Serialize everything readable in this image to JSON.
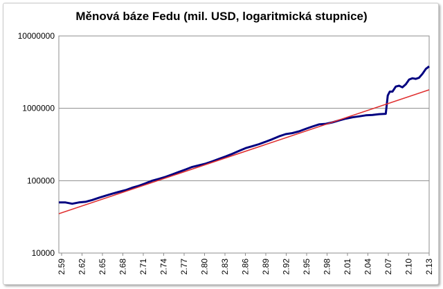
{
  "chart_data": {
    "type": "line",
    "title": "Měnová báze Fedu (mil. USD, logaritmická stupnice)",
    "y_scale": "log",
    "ylim": [
      10000,
      10000000
    ],
    "y_ticks": [
      "10000",
      "100000",
      "1000000",
      "10000000"
    ],
    "x_ticks": [
      "2.59",
      "2.62",
      "2.65",
      "2.68",
      "2.71",
      "2.74",
      "2.77",
      "2.80",
      "2.83",
      "2.86",
      "2.89",
      "2.92",
      "2.95",
      "2.98",
      "2.01",
      "2.04",
      "2.07",
      "2.10",
      "2.13"
    ],
    "grid": "horizontal",
    "series": [
      {
        "color": "#000080",
        "points": [
          [
            0,
            50000
          ],
          [
            1,
            50000
          ],
          [
            2,
            48000
          ],
          [
            3,
            50000
          ],
          [
            4,
            51000
          ],
          [
            5,
            54000
          ],
          [
            6,
            58000
          ],
          [
            7,
            62000
          ],
          [
            8,
            66000
          ],
          [
            9,
            70000
          ],
          [
            10,
            74000
          ],
          [
            11,
            80000
          ],
          [
            12,
            85000
          ],
          [
            13,
            92000
          ],
          [
            14,
            100000
          ],
          [
            15,
            106000
          ],
          [
            16,
            113000
          ],
          [
            17,
            122000
          ],
          [
            18,
            132000
          ],
          [
            19,
            143000
          ],
          [
            20,
            155000
          ],
          [
            21,
            163000
          ],
          [
            22,
            172000
          ],
          [
            23,
            185000
          ],
          [
            24,
            200000
          ],
          [
            25,
            216000
          ],
          [
            26,
            235000
          ],
          [
            27,
            258000
          ],
          [
            28,
            282000
          ],
          [
            29,
            300000
          ],
          [
            30,
            320000
          ],
          [
            31,
            345000
          ],
          [
            32,
            375000
          ],
          [
            33,
            410000
          ],
          [
            34,
            440000
          ],
          [
            35,
            455000
          ],
          [
            36,
            480000
          ],
          [
            37,
            520000
          ],
          [
            38,
            560000
          ],
          [
            39,
            600000
          ],
          [
            40,
            610000
          ],
          [
            41,
            640000
          ],
          [
            42,
            680000
          ],
          [
            43,
            720000
          ],
          [
            44,
            750000
          ],
          [
            45,
            775000
          ],
          [
            46,
            800000
          ],
          [
            47,
            810000
          ],
          [
            48,
            830000
          ],
          [
            49,
            840000
          ],
          [
            49.3,
            1500000
          ],
          [
            49.6,
            1700000
          ],
          [
            50,
            1700000
          ],
          [
            50.5,
            2000000
          ],
          [
            51,
            2050000
          ],
          [
            51.5,
            1950000
          ],
          [
            52,
            2150000
          ],
          [
            52.5,
            2500000
          ],
          [
            53,
            2600000
          ],
          [
            53.5,
            2550000
          ],
          [
            54,
            2650000
          ],
          [
            54.5,
            3000000
          ],
          [
            55,
            3500000
          ],
          [
            55.5,
            3800000
          ]
        ]
      },
      {
        "color": "#e03030",
        "points": [
          [
            0,
            35000
          ],
          [
            55.5,
            1800000
          ]
        ]
      }
    ]
  }
}
